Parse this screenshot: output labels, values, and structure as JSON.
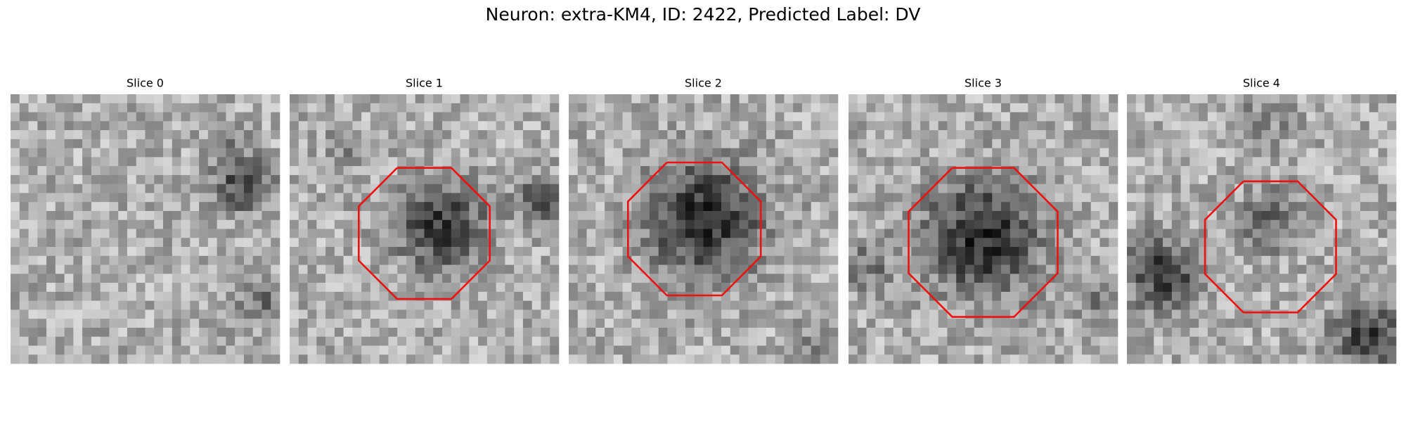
{
  "title": "Neuron: extra-KM4, ID: 2422, Predicted Label: DV",
  "panels": [
    {
      "title": "Slice 0"
    },
    {
      "title": "Slice 1"
    },
    {
      "title": "Slice 2"
    },
    {
      "title": "Slice 3"
    },
    {
      "title": "Slice 4"
    }
  ]
}
